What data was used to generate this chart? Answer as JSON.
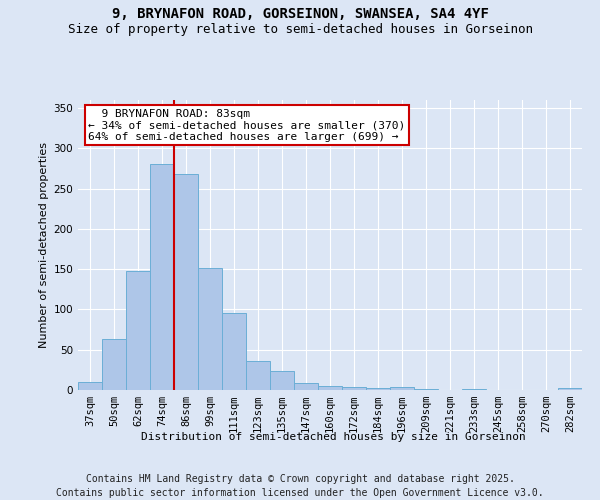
{
  "title_line1": "9, BRYNAFON ROAD, GORSEINON, SWANSEA, SA4 4YF",
  "title_line2": "Size of property relative to semi-detached houses in Gorseinon",
  "xlabel": "Distribution of semi-detached houses by size in Gorseinon",
  "ylabel": "Number of semi-detached properties",
  "categories": [
    "37sqm",
    "50sqm",
    "62sqm",
    "74sqm",
    "86sqm",
    "99sqm",
    "111sqm",
    "123sqm",
    "135sqm",
    "147sqm",
    "160sqm",
    "172sqm",
    "184sqm",
    "196sqm",
    "209sqm",
    "221sqm",
    "233sqm",
    "245sqm",
    "258sqm",
    "270sqm",
    "282sqm"
  ],
  "values": [
    10,
    63,
    148,
    280,
    268,
    152,
    95,
    36,
    24,
    9,
    5,
    4,
    3,
    4,
    1,
    0,
    1,
    0,
    0,
    0,
    2
  ],
  "bar_color": "#aec6e8",
  "bar_edge_color": "#6baed6",
  "vline_color": "#cc0000",
  "annotation_text_line1": "9 BRYNAFON ROAD: 83sqm",
  "annotation_text_line2": "← 34% of semi-detached houses are smaller (370)",
  "annotation_text_line3": "64% of semi-detached houses are larger (699) →",
  "annotation_box_facecolor": "#ffffff",
  "annotation_box_edgecolor": "#cc0000",
  "background_color": "#dce6f5",
  "footer_line1": "Contains HM Land Registry data © Crown copyright and database right 2025.",
  "footer_line2": "Contains public sector information licensed under the Open Government Licence v3.0.",
  "ylim": [
    0,
    360
  ],
  "yticks": [
    0,
    50,
    100,
    150,
    200,
    250,
    300,
    350
  ],
  "title_fontsize": 10,
  "subtitle_fontsize": 9,
  "axis_fontsize": 8,
  "tick_fontsize": 7.5,
  "annotation_fontsize": 8,
  "footer_fontsize": 7
}
